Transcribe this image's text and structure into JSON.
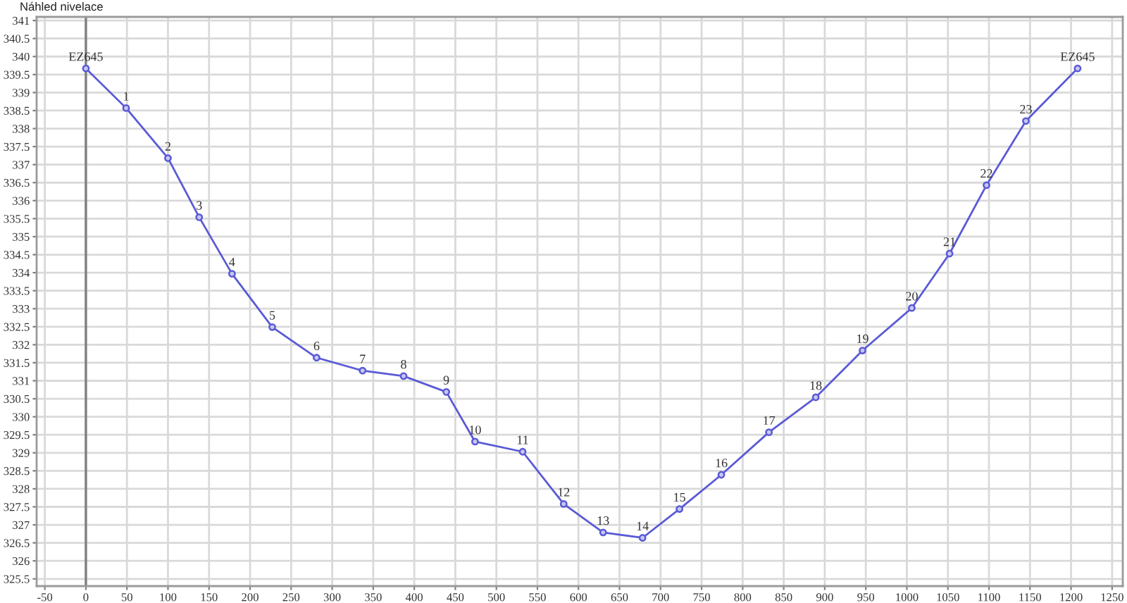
{
  "chart_data": {
    "type": "line",
    "title": "Náhled nivelace",
    "x": [
      0,
      49,
      100,
      138,
      178,
      227,
      281,
      337,
      387,
      439,
      474,
      532,
      582,
      630,
      678,
      723,
      774,
      832,
      889,
      946,
      1006,
      1052,
      1097,
      1145,
      1208
    ],
    "series": [
      {
        "color": "#5a5ad6",
        "values": [
          339.67,
          338.57,
          337.18,
          335.54,
          333.97,
          332.49,
          331.64,
          331.28,
          331.13,
          330.69,
          329.31,
          329.03,
          327.58,
          326.79,
          326.64,
          327.44,
          328.39,
          329.57,
          330.54,
          331.84,
          333.02,
          334.53,
          336.43,
          338.21,
          339.67
        ]
      }
    ],
    "annotations": [
      {
        "text": "EZ645",
        "x": 0,
        "y": 339.67
      },
      {
        "text": "1",
        "x": 49,
        "y": 338.57
      },
      {
        "text": "2",
        "x": 100,
        "y": 337.18
      },
      {
        "text": "3",
        "x": 138,
        "y": 335.54
      },
      {
        "text": "4",
        "x": 178,
        "y": 333.97
      },
      {
        "text": "5",
        "x": 227,
        "y": 332.49
      },
      {
        "text": "6",
        "x": 281,
        "y": 331.64
      },
      {
        "text": "7",
        "x": 337,
        "y": 331.28
      },
      {
        "text": "8",
        "x": 387,
        "y": 331.13
      },
      {
        "text": "9",
        "x": 439,
        "y": 330.69
      },
      {
        "text": "10",
        "x": 474,
        "y": 329.31
      },
      {
        "text": "11",
        "x": 532,
        "y": 329.03
      },
      {
        "text": "12",
        "x": 582,
        "y": 327.58
      },
      {
        "text": "13",
        "x": 630,
        "y": 326.79
      },
      {
        "text": "14",
        "x": 678,
        "y": 326.64
      },
      {
        "text": "15",
        "x": 723,
        "y": 327.44
      },
      {
        "text": "16",
        "x": 774,
        "y": 328.39
      },
      {
        "text": "17",
        "x": 832,
        "y": 329.57
      },
      {
        "text": "18",
        "x": 889,
        "y": 330.54
      },
      {
        "text": "19",
        "x": 946,
        "y": 331.84
      },
      {
        "text": "20",
        "x": 1006,
        "y": 333.02
      },
      {
        "text": "21",
        "x": 1052,
        "y": 334.53
      },
      {
        "text": "22",
        "x": 1097,
        "y": 336.43
      },
      {
        "text": "23",
        "x": 1145,
        "y": 338.21
      },
      {
        "text": "EZ645",
        "x": 1208,
        "y": 339.67
      }
    ],
    "xlim": [
      -60,
      1263
    ],
    "xticks": [
      -50,
      0,
      50,
      100,
      150,
      200,
      250,
      300,
      350,
      400,
      450,
      500,
      550,
      600,
      650,
      700,
      750,
      800,
      850,
      900,
      950,
      1000,
      1050,
      1100,
      1150,
      1200,
      1250
    ],
    "ylim": [
      325.3,
      341.1
    ],
    "yticks": [
      325.5,
      326,
      326.5,
      327,
      327.5,
      328,
      328.5,
      329,
      329.5,
      330,
      330.5,
      331,
      331.5,
      332,
      332.5,
      333,
      333.5,
      334,
      334.5,
      335,
      335.5,
      336,
      336.5,
      337,
      337.5,
      338,
      338.5,
      339,
      339.5,
      340,
      340.5,
      341
    ],
    "ref_lines": [
      {
        "axis": "x",
        "value": 0,
        "color": "#7f7f7f"
      }
    ],
    "grid": true,
    "marker": "circle",
    "line_style": "solid"
  }
}
